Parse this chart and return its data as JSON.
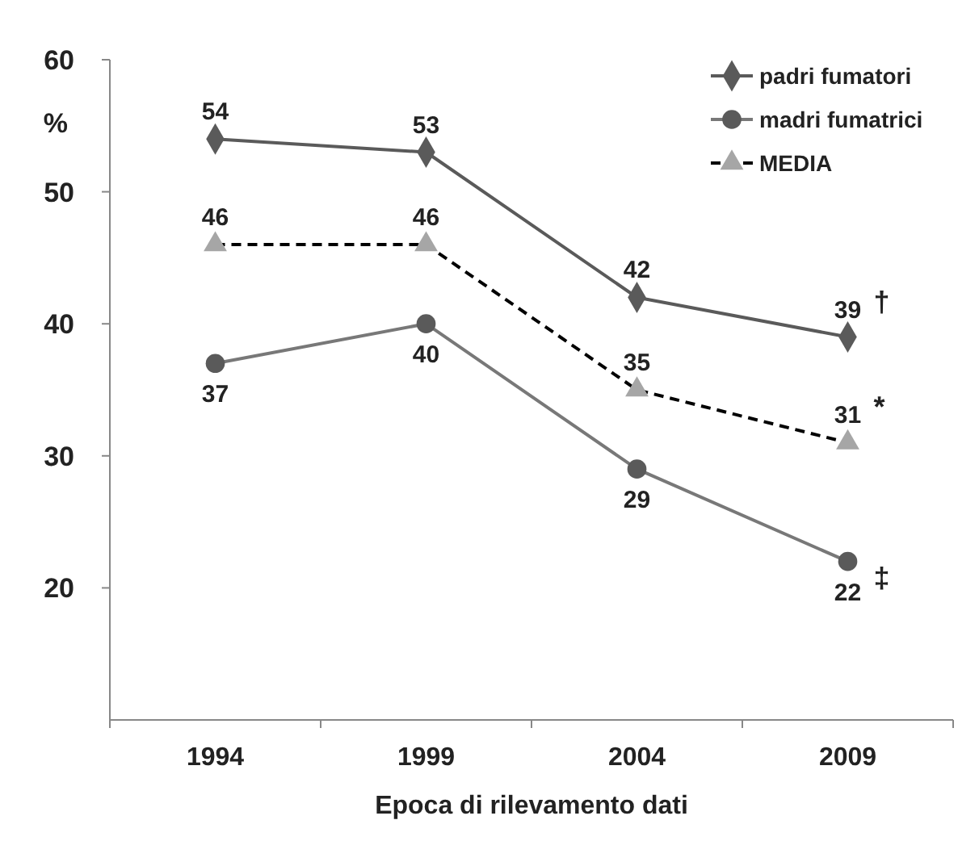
{
  "chart_data": {
    "type": "line",
    "xlabel": "Epoca di rilevamento dati",
    "ylabel": "%",
    "categories": [
      "1994",
      "1999",
      "2004",
      "2009"
    ],
    "ylim": [
      10,
      60
    ],
    "yticks": [
      20,
      30,
      40,
      50,
      60
    ],
    "grid": false,
    "legend": "top right",
    "data_labels": true,
    "series": [
      {
        "name": "padri fumatori",
        "color": "#5a5a5a",
        "marker": "diamond",
        "line_style": "solid",
        "values": [
          54,
          53,
          42,
          39
        ]
      },
      {
        "name": "madri fumatrici",
        "color": "#5a5a5a",
        "marker": "circle",
        "line_style": "solid",
        "values": [
          37,
          40,
          29,
          22
        ]
      },
      {
        "name": "MEDIA",
        "color": "#a6a6a6",
        "marker": "triangle",
        "line_style": "dashed",
        "values": [
          46,
          46,
          35,
          31
        ]
      }
    ],
    "annotations": [
      {
        "text": "†",
        "x": "2009",
        "y": 39
      },
      {
        "text": "*",
        "x": "2009",
        "y": 31
      },
      {
        "text": "‡",
        "x": "2009",
        "y": 22
      }
    ]
  }
}
